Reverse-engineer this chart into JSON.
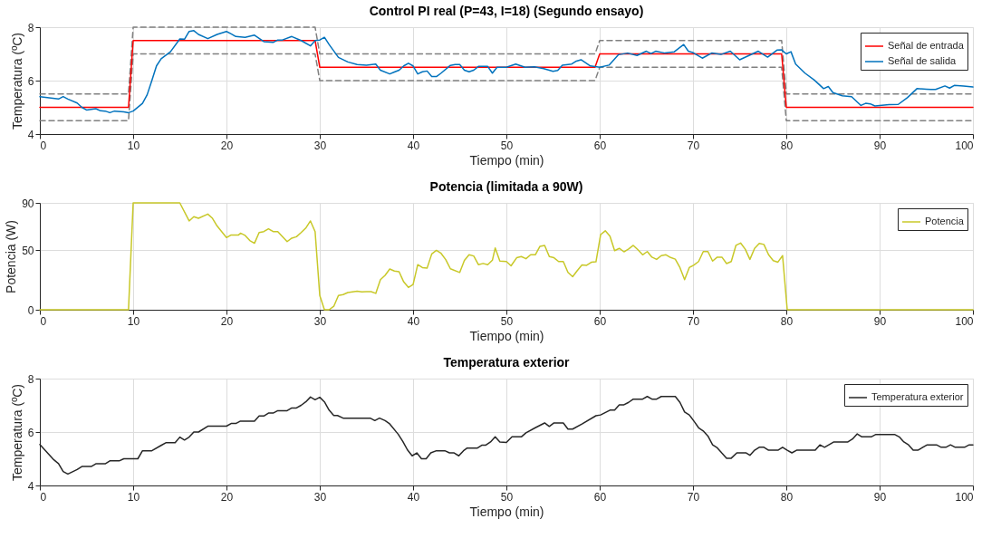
{
  "chart_data": [
    {
      "type": "line",
      "title": "Control PI real (P=43, I=18) (Segundo ensayo)",
      "xlabel": "Tiempo (min)",
      "ylabel": "Temperatura (ºC)",
      "xlim": [
        0,
        100
      ],
      "xticks": [
        0,
        10,
        20,
        30,
        40,
        50,
        60,
        70,
        80,
        90,
        100
      ],
      "ylim": [
        4,
        8
      ],
      "yticks": [
        4,
        6,
        8
      ],
      "grid": true,
      "legend": "top right",
      "series": [
        {
          "color": "#808080",
          "line_style": "dashed",
          "x": [
            0,
            9.5,
            10,
            29.5,
            30,
            59.5,
            60,
            79.5,
            80,
            100
          ],
          "values": [
            5.5,
            5.5,
            8,
            8,
            7,
            7,
            7.5,
            7.5,
            5.5,
            5.5
          ]
        },
        {
          "color": "#808080",
          "line_style": "dashed",
          "x": [
            0,
            9.5,
            10,
            29.5,
            30,
            59.5,
            60,
            79.5,
            80,
            100
          ],
          "values": [
            4.5,
            4.5,
            7,
            7,
            6,
            6,
            6.5,
            6.5,
            4.5,
            4.5
          ]
        },
        {
          "name": "Señal de entrada",
          "color": "#ff0000",
          "x": [
            0,
            9.5,
            10,
            29.5,
            30,
            59.5,
            60,
            79.5,
            80,
            100
          ],
          "values": [
            5,
            5,
            7.5,
            7.5,
            6.5,
            6.5,
            7,
            7,
            5,
            5
          ]
        },
        {
          "name": "Señal de salida",
          "color": "#0072bd",
          "x": [
            0,
            2,
            2.5,
            3,
            4,
            4.5,
            5,
            6,
            6.5,
            7,
            7.5,
            8,
            9,
            9.5,
            10,
            11,
            11.5,
            12,
            12.5,
            13,
            14,
            15,
            15.5,
            16,
            16.5,
            17,
            18,
            19,
            20,
            20.5,
            21,
            22,
            23,
            24,
            25,
            25.5,
            26,
            27,
            28,
            29,
            29.5,
            30,
            30.5,
            31,
            32,
            33,
            34,
            35,
            36,
            36.5,
            37.5,
            38,
            38.5,
            39,
            39.5,
            40,
            40.5,
            41,
            41.5,
            42,
            42.5,
            43,
            44,
            44.5,
            45,
            45.5,
            46,
            46.5,
            47,
            48,
            48.5,
            49,
            50,
            51,
            52,
            53,
            54,
            55,
            55.5,
            56,
            57,
            57.5,
            58,
            59,
            60,
            61,
            62,
            63,
            64,
            65,
            65.5,
            66,
            67,
            68,
            69,
            69.5,
            70,
            71,
            72,
            73,
            74,
            75,
            76,
            77,
            78,
            79,
            79.5,
            80,
            80.5,
            81,
            82,
            83,
            84,
            84.5,
            85,
            86,
            87,
            88,
            88.5,
            89,
            89.5,
            90,
            91,
            92,
            93,
            94,
            95,
            95.5,
            96,
            97,
            97.5,
            98,
            99,
            100
          ],
          "values": [
            5.4,
            5.31,
            5.4,
            5.31,
            5.16,
            5.0,
            4.9,
            4.95,
            4.87,
            4.86,
            4.8,
            4.86,
            4.83,
            4.8,
            4.86,
            5.15,
            5.47,
            6.0,
            6.55,
            6.82,
            7.08,
            7.56,
            7.55,
            7.84,
            7.87,
            7.73,
            7.57,
            7.73,
            7.84,
            7.75,
            7.65,
            7.62,
            7.7,
            7.46,
            7.43,
            7.52,
            7.52,
            7.65,
            7.5,
            7.3,
            7.5,
            7.52,
            7.62,
            7.35,
            6.87,
            6.7,
            6.6,
            6.58,
            6.62,
            6.39,
            6.25,
            6.32,
            6.39,
            6.55,
            6.65,
            6.55,
            6.25,
            6.33,
            6.36,
            6.15,
            6.15,
            6.28,
            6.57,
            6.6,
            6.6,
            6.39,
            6.33,
            6.39,
            6.53,
            6.53,
            6.28,
            6.5,
            6.5,
            6.62,
            6.5,
            6.52,
            6.45,
            6.35,
            6.38,
            6.58,
            6.62,
            6.73,
            6.78,
            6.55,
            6.5,
            6.58,
            6.97,
            7.03,
            6.94,
            7.1,
            7.01,
            7.1,
            7.03,
            7.08,
            7.35,
            7.1,
            7.05,
            6.84,
            7.03,
            6.98,
            7.1,
            6.78,
            6.94,
            7.1,
            6.88,
            7.14,
            7.15,
            7.0,
            7.08,
            6.62,
            6.28,
            6.02,
            5.7,
            5.78,
            5.55,
            5.43,
            5.4,
            5.07,
            5.15,
            5.13,
            5.05,
            5.07,
            5.1,
            5.11,
            5.37,
            5.7,
            5.68,
            5.67,
            5.67,
            5.8,
            5.72,
            5.82,
            5.8,
            5.76
          ]
        }
      ]
    },
    {
      "type": "line",
      "title": "Potencia (limitada a 90W)",
      "xlabel": "Tiempo (min)",
      "ylabel": "Potencia (W)",
      "xlim": [
        0,
        100
      ],
      "xticks": [
        0,
        10,
        20,
        30,
        40,
        50,
        60,
        70,
        80,
        90,
        100
      ],
      "ylim": [
        0,
        90
      ],
      "yticks": [
        0,
        50,
        90
      ],
      "grid": true,
      "legend": "top right",
      "series": [
        {
          "name": "Potencia",
          "color": "#c8c828",
          "x": [
            0,
            9.5,
            10,
            15,
            16,
            16.5,
            17,
            18,
            18.5,
            19,
            20,
            20.5,
            21.3,
            21.5,
            22,
            22.5,
            23,
            23.5,
            24,
            24.5,
            25,
            25.5,
            26.5,
            27,
            27.5,
            28,
            28.5,
            29,
            29.5,
            30,
            30.5,
            31,
            31.5,
            32,
            32.5,
            33,
            34,
            34.5,
            35,
            35.5,
            36,
            36.5,
            37,
            37.5,
            38,
            38.5,
            39,
            39.5,
            40,
            40.5,
            41,
            41.5,
            42,
            42.5,
            43,
            43.5,
            44,
            45,
            45.5,
            46,
            46.5,
            47,
            47.5,
            48,
            48.5,
            48.8,
            49.3,
            50,
            50.5,
            51.1,
            51.6,
            52.1,
            52.6,
            53.1,
            53.6,
            54.1,
            54.6,
            55.1,
            55.6,
            56.1,
            56.6,
            57.1,
            57.6,
            58.1,
            58.6,
            59.1,
            59.6,
            60.1,
            60.6,
            61.1,
            61.6,
            62.1,
            62.6,
            63.1,
            63.6,
            64.1,
            64.6,
            65.1,
            65.6,
            66.1,
            66.6,
            67.1,
            67.6,
            68.1,
            68.6,
            69.1,
            69.6,
            70.1,
            70.6,
            71.1,
            71.6,
            72.1,
            72.6,
            73.1,
            73.6,
            74.1,
            74.6,
            75.1,
            75.6,
            76.1,
            76.6,
            77.1,
            77.6,
            78.1,
            78.6,
            79.1,
            79.6,
            80.1,
            100
          ],
          "values": [
            0,
            0,
            90,
            90,
            74.8,
            78.4,
            77,
            80.6,
            77,
            70.5,
            60.8,
            63,
            63,
            64.5,
            62.6,
            58.3,
            56,
            65,
            65.8,
            68.2,
            65.8,
            65.8,
            57.4,
            60.3,
            61.5,
            65,
            68.8,
            74.8,
            65.8,
            12,
            0,
            0,
            2.9,
            12,
            12.8,
            14.5,
            15.7,
            15,
            15.2,
            15.2,
            13.8,
            25.3,
            29,
            34.3,
            32.6,
            32,
            23.4,
            18.8,
            21.2,
            38,
            35.5,
            35,
            47,
            50,
            47.5,
            42.2,
            34.5,
            31.4,
            41.5,
            46.3,
            45.3,
            38,
            39,
            38,
            41.7,
            52,
            41,
            40.6,
            37,
            43.8,
            44.8,
            43,
            46.3,
            46.3,
            53.4,
            54.2,
            44.8,
            43.8,
            40.6,
            40.6,
            31.5,
            27.8,
            33,
            37.7,
            37.4,
            40,
            40.4,
            63.3,
            66.5,
            62,
            49.8,
            51.7,
            48.8,
            51.2,
            54.2,
            50.5,
            46.3,
            49,
            44.3,
            42.4,
            45.6,
            46.3,
            44,
            42.6,
            35.5,
            25.4,
            35.5,
            37.7,
            40.6,
            49,
            49,
            41,
            44.3,
            44.3,
            38.9,
            40.6,
            54.2,
            56.2,
            51,
            42.4,
            51.7,
            55.9,
            55,
            46.3,
            41.4,
            40.1,
            45.6,
            0,
            0
          ]
        }
      ]
    },
    {
      "type": "line",
      "title": "Temperatura exterior",
      "xlabel": "Tiempo (min)",
      "ylabel": "Temperatura (ºC)",
      "xlim": [
        0,
        100
      ],
      "xticks": [
        0,
        10,
        20,
        30,
        40,
        50,
        60,
        70,
        80,
        90,
        100
      ],
      "ylim": [
        4,
        8
      ],
      "yticks": [
        4,
        6,
        8
      ],
      "grid": true,
      "legend": "top right",
      "series": [
        {
          "name": "Temperatura exterior",
          "color": "#262626",
          "x": [
            0,
            1.5,
            2,
            2.5,
            3,
            4,
            4.5,
            5.5,
            6,
            7,
            7.5,
            8.5,
            9,
            10.5,
            11,
            12,
            13,
            13.5,
            14.5,
            15,
            15.5,
            16,
            16.5,
            17,
            18,
            20,
            20.5,
            21,
            21.5,
            23,
            23.5,
            24,
            24.5,
            25,
            25.5,
            26.5,
            27,
            27.5,
            28,
            28.5,
            29,
            29.5,
            30,
            30.5,
            31,
            31.5,
            31.9,
            32.5,
            35.4,
            35.9,
            36.4,
            37,
            37.45,
            38.4,
            38.9,
            39.4,
            39.9,
            40.4,
            40.9,
            41.4,
            41.9,
            42.5,
            43.4,
            43.9,
            44.4,
            44.9,
            45.4,
            45.8,
            46.9,
            47.4,
            47.8,
            48.3,
            48.8,
            49.3,
            50,
            50.6,
            51.6,
            52.1,
            53.1,
            54.1,
            54.6,
            55.1,
            56.1,
            56.6,
            57.1,
            58.1,
            59.6,
            60.1,
            61.1,
            61.6,
            62.1,
            62.6,
            63.1,
            63.6,
            64.6,
            65.1,
            65.6,
            66.1,
            66.6,
            68.1,
            68.6,
            69.1,
            69.6,
            70.2,
            70.6,
            71.1,
            71.6,
            72.1,
            72.6,
            73.1,
            73.6,
            74.1,
            74.7,
            75.7,
            76.1,
            76.6,
            77.1,
            77.6,
            78.1,
            79.1,
            79.6,
            80.1,
            80.6,
            81.1,
            83.1,
            83.6,
            84.1,
            85.1,
            86.6,
            87.1,
            87.6,
            88.1,
            89.1,
            89.6,
            91.6,
            92.1,
            92.6,
            93.1,
            93.6,
            94.1,
            95.1,
            96.1,
            96.6,
            97.1,
            97.6,
            98.1,
            99.1,
            99.6,
            100
          ],
          "values": [
            5.53,
            4.96,
            4.82,
            4.52,
            4.43,
            4.6,
            4.71,
            4.71,
            4.81,
            4.81,
            4.92,
            4.92,
            5.0,
            5.0,
            5.3,
            5.3,
            5.5,
            5.6,
            5.6,
            5.81,
            5.7,
            5.81,
            6.0,
            6.0,
            6.22,
            6.22,
            6.32,
            6.32,
            6.41,
            6.41,
            6.6,
            6.6,
            6.71,
            6.71,
            6.8,
            6.8,
            6.9,
            6.9,
            7.0,
            7.13,
            7.31,
            7.21,
            7.3,
            7.13,
            6.82,
            6.62,
            6.62,
            6.52,
            6.52,
            6.43,
            6.52,
            6.43,
            6.32,
            5.92,
            5.65,
            5.33,
            5.11,
            5.22,
            5.0,
            5.0,
            5.22,
            5.3,
            5.3,
            5.22,
            5.22,
            5.11,
            5.3,
            5.4,
            5.4,
            5.51,
            5.51,
            5.63,
            5.82,
            5.63,
            5.61,
            5.82,
            5.82,
            5.97,
            6.16,
            6.34,
            6.21,
            6.34,
            6.34,
            6.11,
            6.11,
            6.3,
            6.61,
            6.64,
            6.82,
            6.82,
            7.02,
            7.02,
            7.11,
            7.23,
            7.23,
            7.33,
            7.23,
            7.23,
            7.33,
            7.33,
            7.11,
            6.75,
            6.64,
            6.36,
            6.16,
            6.04,
            5.85,
            5.52,
            5.41,
            5.21,
            5.02,
            5.02,
            5.22,
            5.22,
            5.13,
            5.32,
            5.43,
            5.43,
            5.32,
            5.32,
            5.43,
            5.32,
            5.22,
            5.32,
            5.32,
            5.52,
            5.43,
            5.63,
            5.63,
            5.74,
            5.93,
            5.82,
            5.82,
            5.91,
            5.91,
            5.82,
            5.63,
            5.52,
            5.32,
            5.32,
            5.52,
            5.52,
            5.43,
            5.43,
            5.52,
            5.43,
            5.43,
            5.52,
            5.52
          ]
        }
      ]
    }
  ]
}
